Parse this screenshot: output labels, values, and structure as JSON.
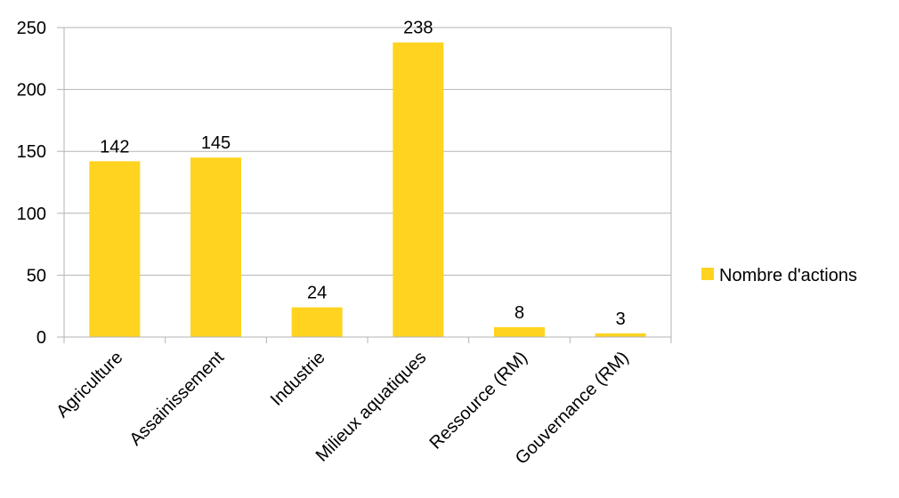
{
  "chart_data": {
    "type": "bar",
    "categories": [
      "Agriculture",
      "Assainissement",
      "Industrie",
      "Milieux aquatiques",
      "Ressource (RM)",
      "Gouvernance (RM)"
    ],
    "series": [
      {
        "name": "Nombre d'actions",
        "values": [
          142,
          145,
          24,
          238,
          8,
          3
        ],
        "color": "#FFD320"
      }
    ],
    "ylim": [
      0,
      250
    ],
    "yticks": [
      0,
      50,
      100,
      150,
      200,
      250
    ],
    "grid": true,
    "legend_position": "right",
    "data_labels": true
  }
}
